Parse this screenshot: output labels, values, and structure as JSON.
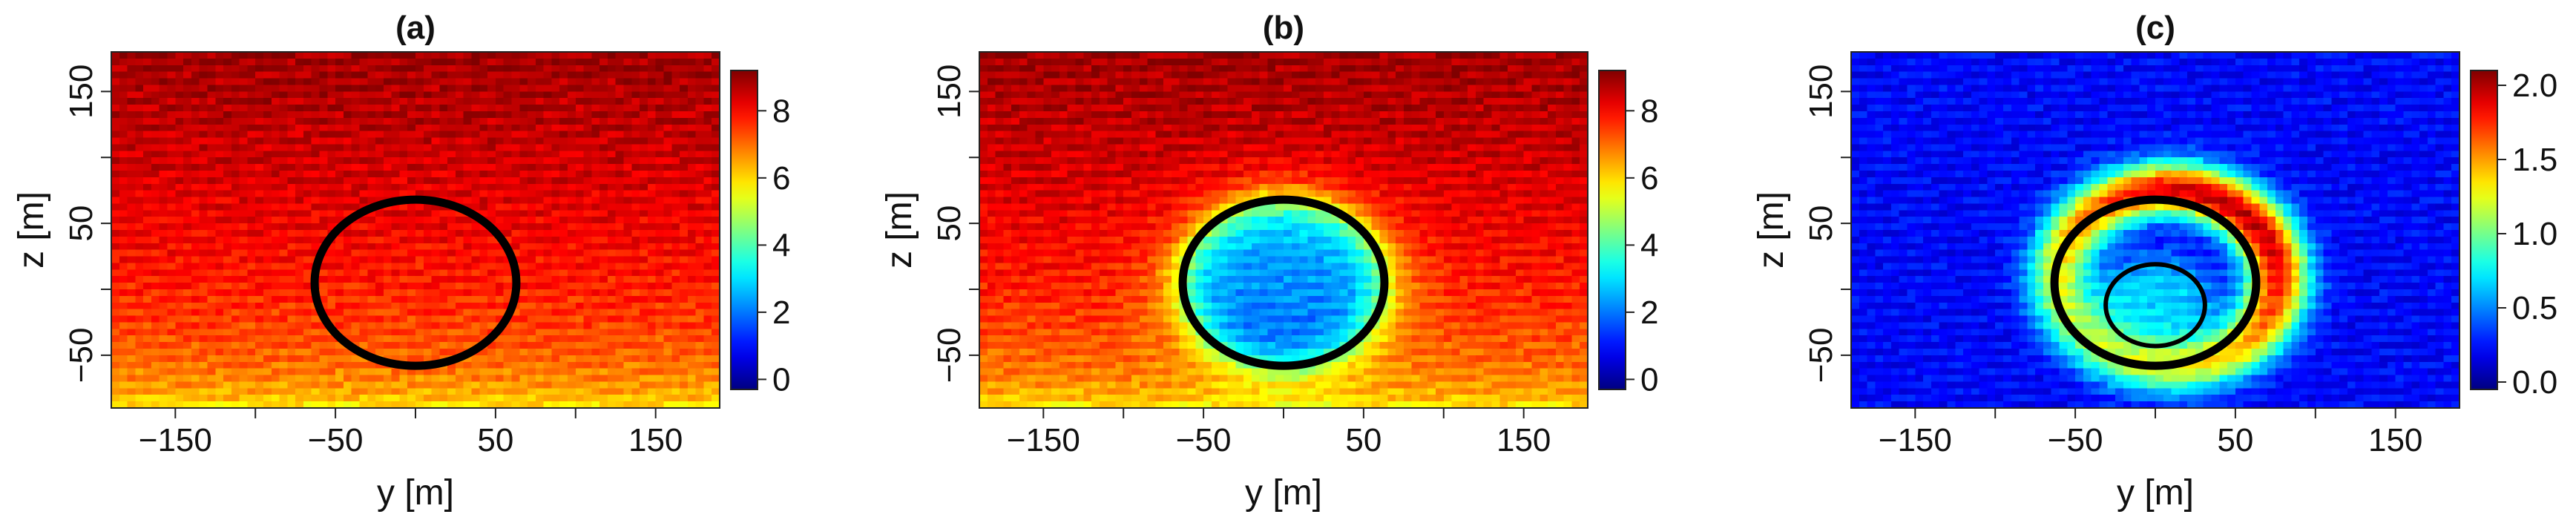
{
  "chart_data": [
    {
      "type": "heatmap",
      "title": "(a)",
      "xlabel": "y [m]",
      "ylabel": "z [m]",
      "xlim": [
        -190,
        190
      ],
      "ylim": [
        -90,
        180
      ],
      "xticks": [
        -150,
        -50,
        50,
        150
      ],
      "xtick_labels": [
        "−150",
        "−50",
        "50",
        "150"
      ],
      "yticks": [
        -50,
        50,
        150
      ],
      "ytick_labels": [
        "−50",
        "50",
        "150"
      ],
      "colorbar": {
        "range": [
          -0.3,
          9.2
        ],
        "ticks": [
          0,
          2,
          4,
          6,
          8
        ],
        "tick_labels": [
          "0",
          "2",
          "4",
          "6",
          "8"
        ]
      },
      "field": {
        "description": "wind speed increasing with height",
        "top_value": 8.9,
        "bottom_value": 5.2,
        "wake_deficit": 0,
        "ring_amplitude": 0
      },
      "circles": [
        {
          "center_y": 0,
          "center_z": 5,
          "radius": 63
        }
      ]
    },
    {
      "type": "heatmap",
      "title": "(b)",
      "xlabel": "y [m]",
      "ylabel": "z [m]",
      "xlim": [
        -190,
        190
      ],
      "ylim": [
        -90,
        180
      ],
      "xticks": [
        -150,
        -50,
        50,
        150
      ],
      "xtick_labels": [
        "−150",
        "−50",
        "50",
        "150"
      ],
      "yticks": [
        -50,
        50,
        150
      ],
      "ytick_labels": [
        "−50",
        "50",
        "150"
      ],
      "colorbar": {
        "range": [
          -0.3,
          9.2
        ],
        "ticks": [
          0,
          2,
          4,
          6,
          8
        ],
        "tick_labels": [
          "0",
          "2",
          "4",
          "6",
          "8"
        ]
      },
      "field": {
        "description": "wake deficit behind rotor",
        "top_value": 8.9,
        "bottom_value": 5.2,
        "wake_deficit": 5.5,
        "wake_center_y": 0,
        "wake_center_z": 5,
        "wake_radius": 63,
        "ring_amplitude": 0
      },
      "circles": [
        {
          "center_y": 0,
          "center_z": 5,
          "radius": 63
        }
      ]
    },
    {
      "type": "heatmap",
      "title": "(c)",
      "xlabel": "y [m]",
      "ylabel": "z [m]",
      "xlim": [
        -190,
        190
      ],
      "ylim": [
        -90,
        180
      ],
      "xticks": [
        -150,
        -50,
        50,
        150
      ],
      "xtick_labels": [
        "−150",
        "−50",
        "50",
        "150"
      ],
      "yticks": [
        -50,
        50,
        150
      ],
      "ytick_labels": [
        "−50",
        "50",
        "150"
      ],
      "colorbar": {
        "range": [
          -0.05,
          2.1
        ],
        "ticks": [
          0.0,
          0.5,
          1.0,
          1.5,
          2.0
        ],
        "tick_labels": [
          "0.0",
          "0.5",
          "1.0",
          "1.5",
          "2.0"
        ]
      },
      "field": {
        "description": "turbulence intensity, high ring around rotor edge",
        "base_value": 0.22,
        "ring_amplitude": 1.75,
        "ring_center_y": 8,
        "ring_center_z": 8,
        "ring_radius": 68,
        "inner_value": 0.75,
        "inner_radius": 40
      },
      "circles": [
        {
          "center_y": 0,
          "center_z": 5,
          "radius": 63
        },
        {
          "center_y": 0,
          "center_z": -12,
          "radius": 31
        }
      ]
    }
  ]
}
